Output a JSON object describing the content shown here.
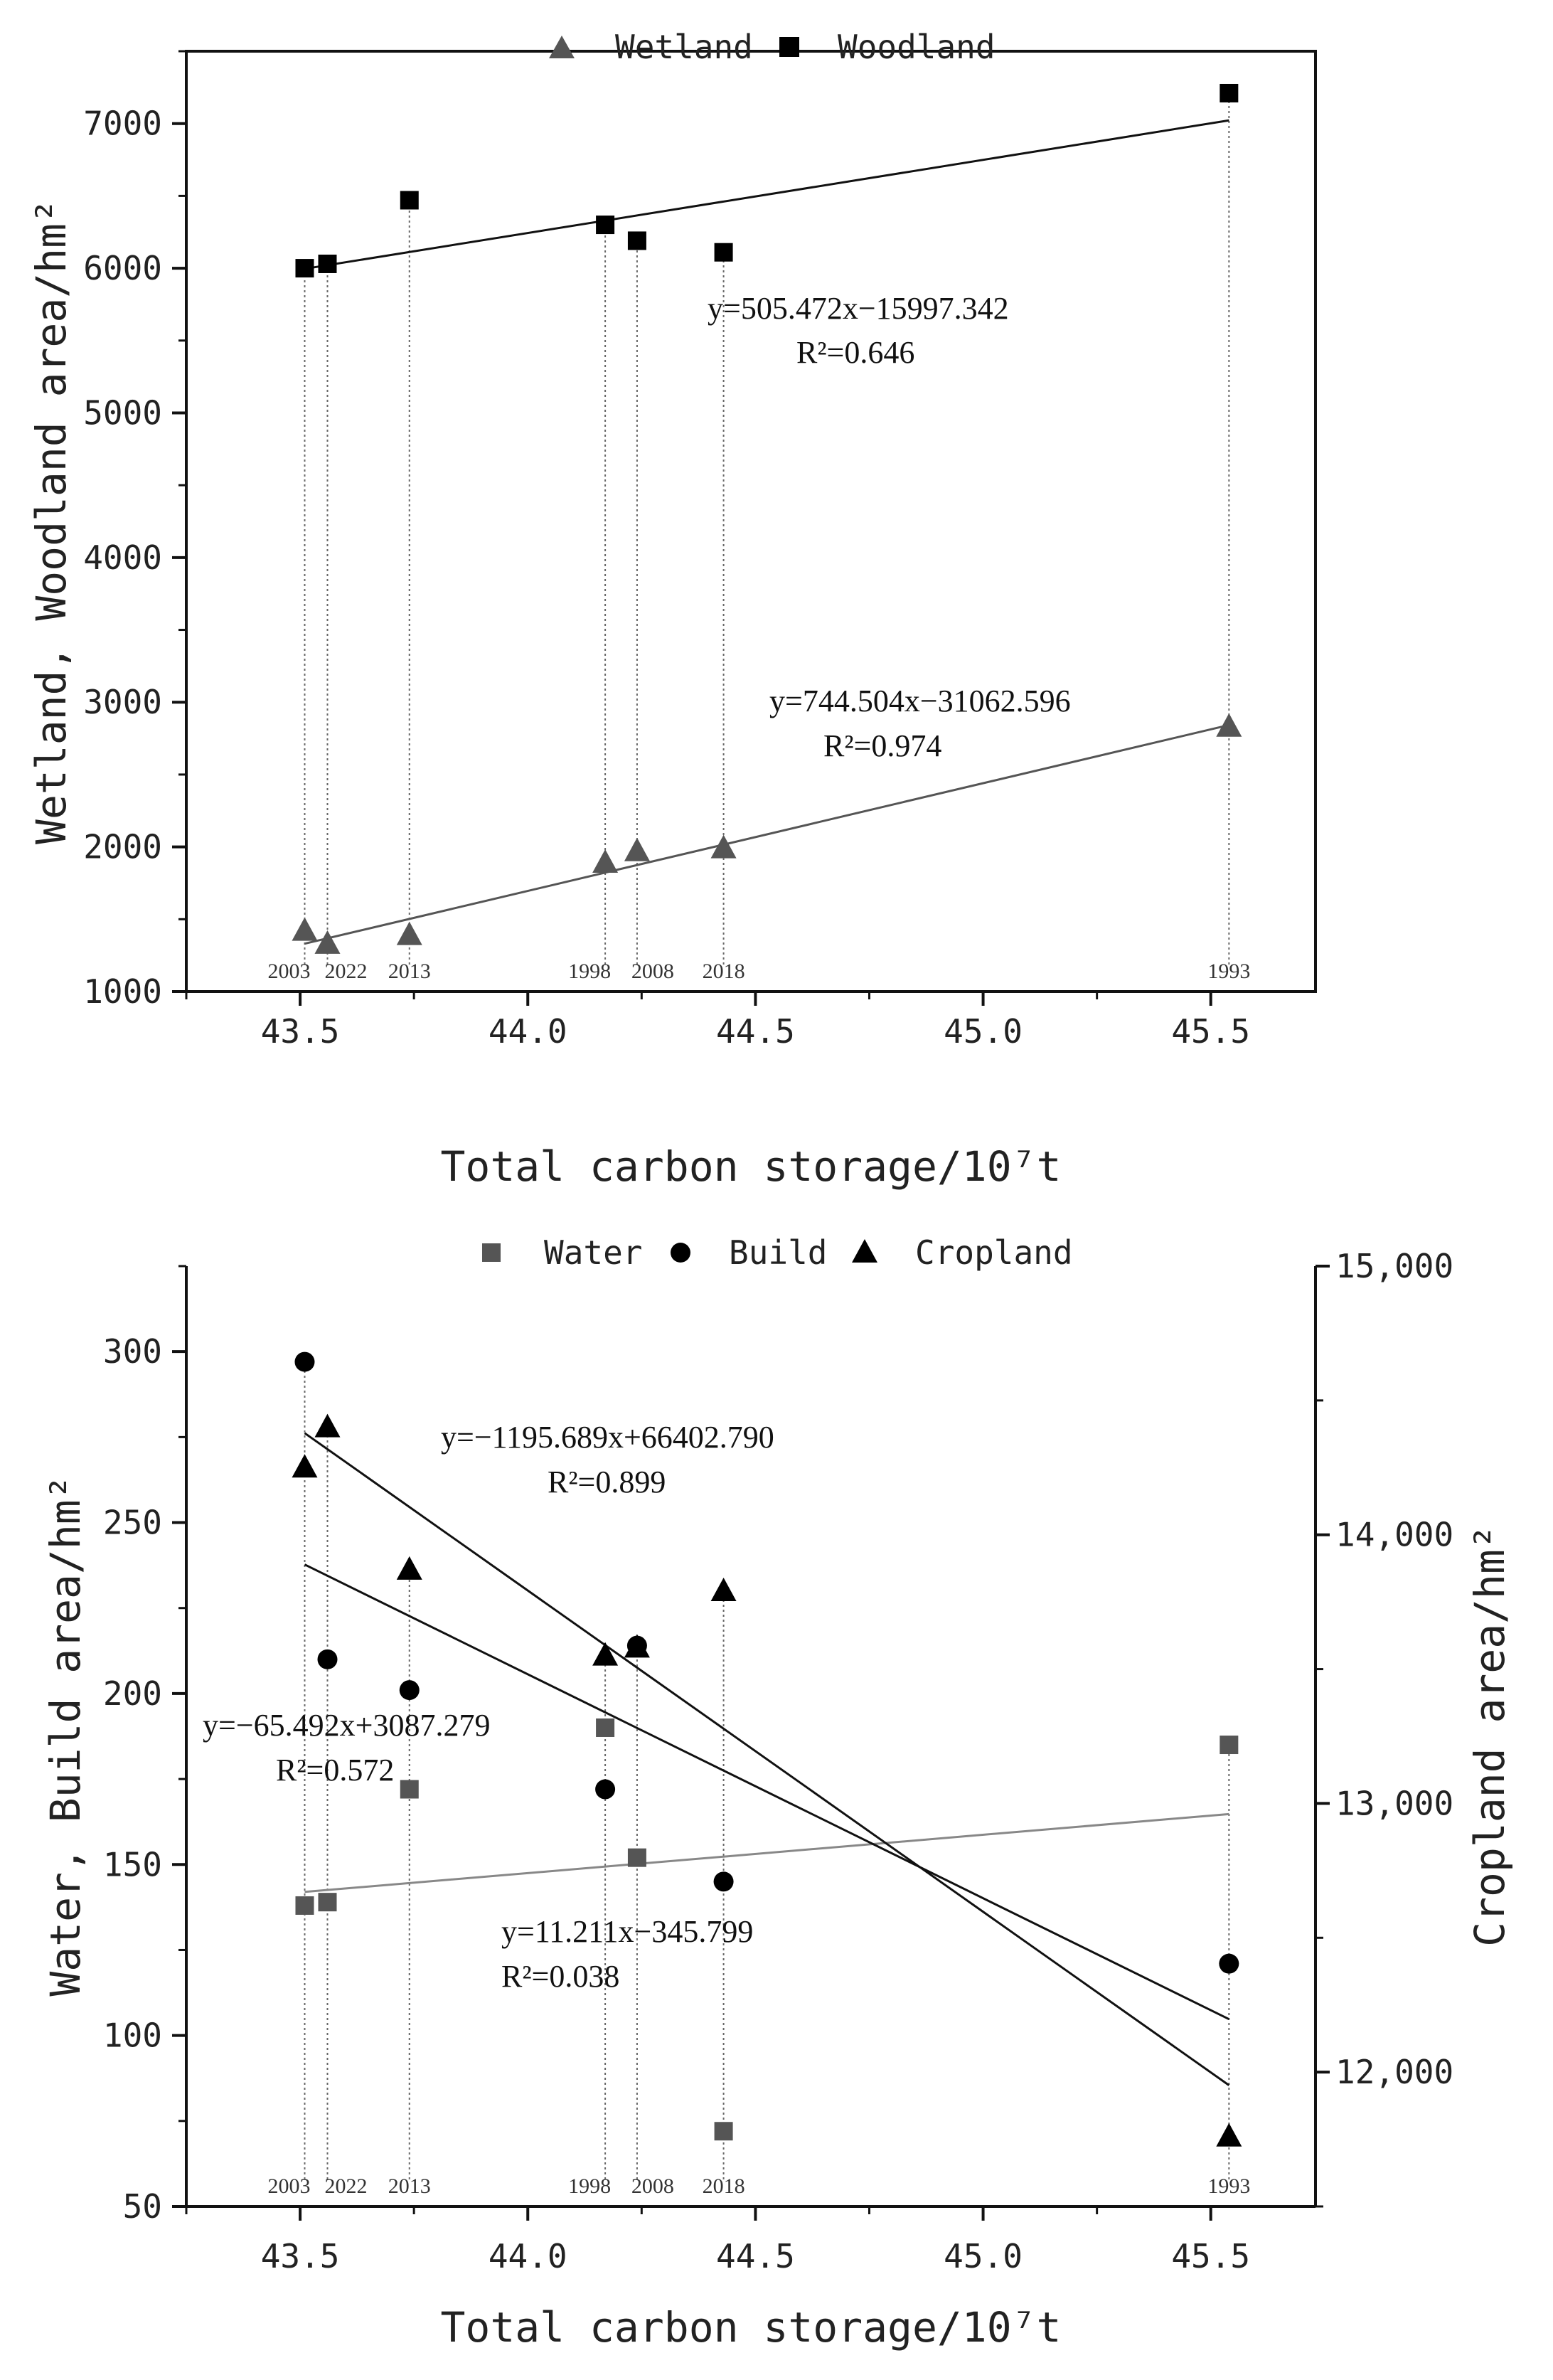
{
  "chart_data": [
    {
      "type": "scatter",
      "xlabel": "Total carbon storage/10⁷t",
      "ylabel": "Wetland, Woodland area/hm²",
      "xlim": [
        43.25,
        45.73
      ],
      "ylim": [
        1000,
        7500
      ],
      "xticks": [
        43.5,
        44.0,
        44.5,
        45.0,
        45.5
      ],
      "xtick_labels": [
        "43.5",
        "44.0",
        "44.5",
        "45.0",
        "45.5"
      ],
      "yticks": [
        1000,
        2000,
        3000,
        4000,
        5000,
        6000,
        7000
      ],
      "ytick_labels": [
        "1000",
        "2000",
        "3000",
        "4000",
        "5000",
        "6000",
        "7000"
      ],
      "legend": {
        "placement": "top-center",
        "items": [
          "Wetland",
          "Woodland"
        ]
      },
      "years": [
        {
          "label": "2003",
          "x": 43.51
        },
        {
          "label": "2022",
          "x": 43.56
        },
        {
          "label": "2013",
          "x": 43.74
        },
        {
          "label": "1998",
          "x": 44.17
        },
        {
          "label": "2008",
          "x": 44.24
        },
        {
          "label": "2018",
          "x": 44.43
        },
        {
          "label": "1993",
          "x": 45.54
        }
      ],
      "series": [
        {
          "name": "Wetland",
          "marker": "triangle",
          "color": "#555555",
          "x": [
            43.51,
            43.56,
            43.74,
            44.17,
            44.24,
            44.43,
            45.54
          ],
          "y": [
            1420,
            1330,
            1390,
            1890,
            1970,
            1990,
            2830
          ],
          "fit": {
            "slope": 744.504,
            "intercept": -31062.596,
            "x_range": [
              43.51,
              45.54
            ],
            "equation": "y=744.504x−31062.596",
            "r2": "R²=0.974",
            "color": "#555555"
          }
        },
        {
          "name": "Woodland",
          "marker": "square",
          "color": "#000000",
          "x": [
            43.51,
            43.56,
            43.74,
            44.17,
            44.24,
            44.43,
            45.54
          ],
          "y": [
            6000,
            6030,
            6470,
            6300,
            6190,
            6110,
            7210
          ],
          "fit": {
            "slope": 505.472,
            "intercept": -15997.342,
            "x_range": [
              43.51,
              45.54
            ],
            "equation": "y=505.472x−15997.342",
            "r2": "R²=0.646",
            "color": "#111111"
          }
        }
      ]
    },
    {
      "type": "scatter",
      "xlabel": "Total carbon storage/10⁷t",
      "ylabel": "Water, Build area/hm²",
      "ylabel_right": "Cropland area/hm²",
      "xlim": [
        43.25,
        45.73
      ],
      "ylim": [
        50,
        325
      ],
      "ylim_right": [
        11500,
        15000
      ],
      "xticks": [
        43.5,
        44.0,
        44.5,
        45.0,
        45.5
      ],
      "xtick_labels": [
        "43.5",
        "44.0",
        "44.5",
        "45.0",
        "45.5"
      ],
      "yticks": [
        50,
        100,
        150,
        200,
        250,
        300
      ],
      "ytick_labels": [
        "50",
        "100",
        "150",
        "200",
        "250",
        "300"
      ],
      "yticks_right": [
        12000,
        13000,
        14000,
        15000
      ],
      "ytick_labels_right": [
        "12,000",
        "13,000",
        "14,000",
        "15,000"
      ],
      "legend": {
        "placement": "top-center",
        "items": [
          "Water",
          "Build",
          "Cropland"
        ]
      },
      "years": [
        {
          "label": "2003",
          "x": 43.51
        },
        {
          "label": "2022",
          "x": 43.56
        },
        {
          "label": "2013",
          "x": 43.74
        },
        {
          "label": "1998",
          "x": 44.17
        },
        {
          "label": "2008",
          "x": 44.24
        },
        {
          "label": "2018",
          "x": 44.43
        },
        {
          "label": "1993",
          "x": 45.54
        }
      ],
      "series": [
        {
          "name": "Water",
          "marker": "square",
          "color": "#555555",
          "axis": "left",
          "x": [
            43.51,
            43.56,
            43.74,
            44.17,
            44.24,
            44.43,
            45.54
          ],
          "y": [
            138,
            139,
            172,
            190,
            152,
            72,
            185
          ],
          "fit": {
            "slope": 11.211,
            "intercept": -345.799,
            "x_range": [
              43.51,
              45.54
            ],
            "equation": "y=11.211x−345.799",
            "r2": "R²=0.038",
            "color": "#888888"
          }
        },
        {
          "name": "Build",
          "marker": "circle",
          "color": "#000000",
          "axis": "left",
          "x": [
            43.51,
            43.56,
            43.74,
            44.17,
            44.24,
            44.43,
            45.54
          ],
          "y": [
            297,
            210,
            201,
            172,
            214,
            145,
            121
          ],
          "fit": {
            "slope": -65.492,
            "intercept": 3087.279,
            "x_range": [
              43.51,
              45.54
            ],
            "equation": "y=−65.492x+3087.279",
            "r2": "R²=0.572",
            "color": "#111111"
          }
        },
        {
          "name": "Cropland",
          "marker": "triangle",
          "color": "#000000",
          "axis": "right",
          "x": [
            43.51,
            43.56,
            43.74,
            44.17,
            44.24,
            44.43,
            45.54
          ],
          "y": [
            14250,
            14400,
            13870,
            13550,
            13580,
            13790,
            11760
          ],
          "fit": {
            "slope": -1195.689,
            "intercept": 66402.79,
            "x_range": [
              43.51,
              45.54
            ],
            "equation": "y=−1195.689x+66402.790",
            "r2": "R²=0.899",
            "color": "#111111"
          }
        }
      ]
    }
  ]
}
